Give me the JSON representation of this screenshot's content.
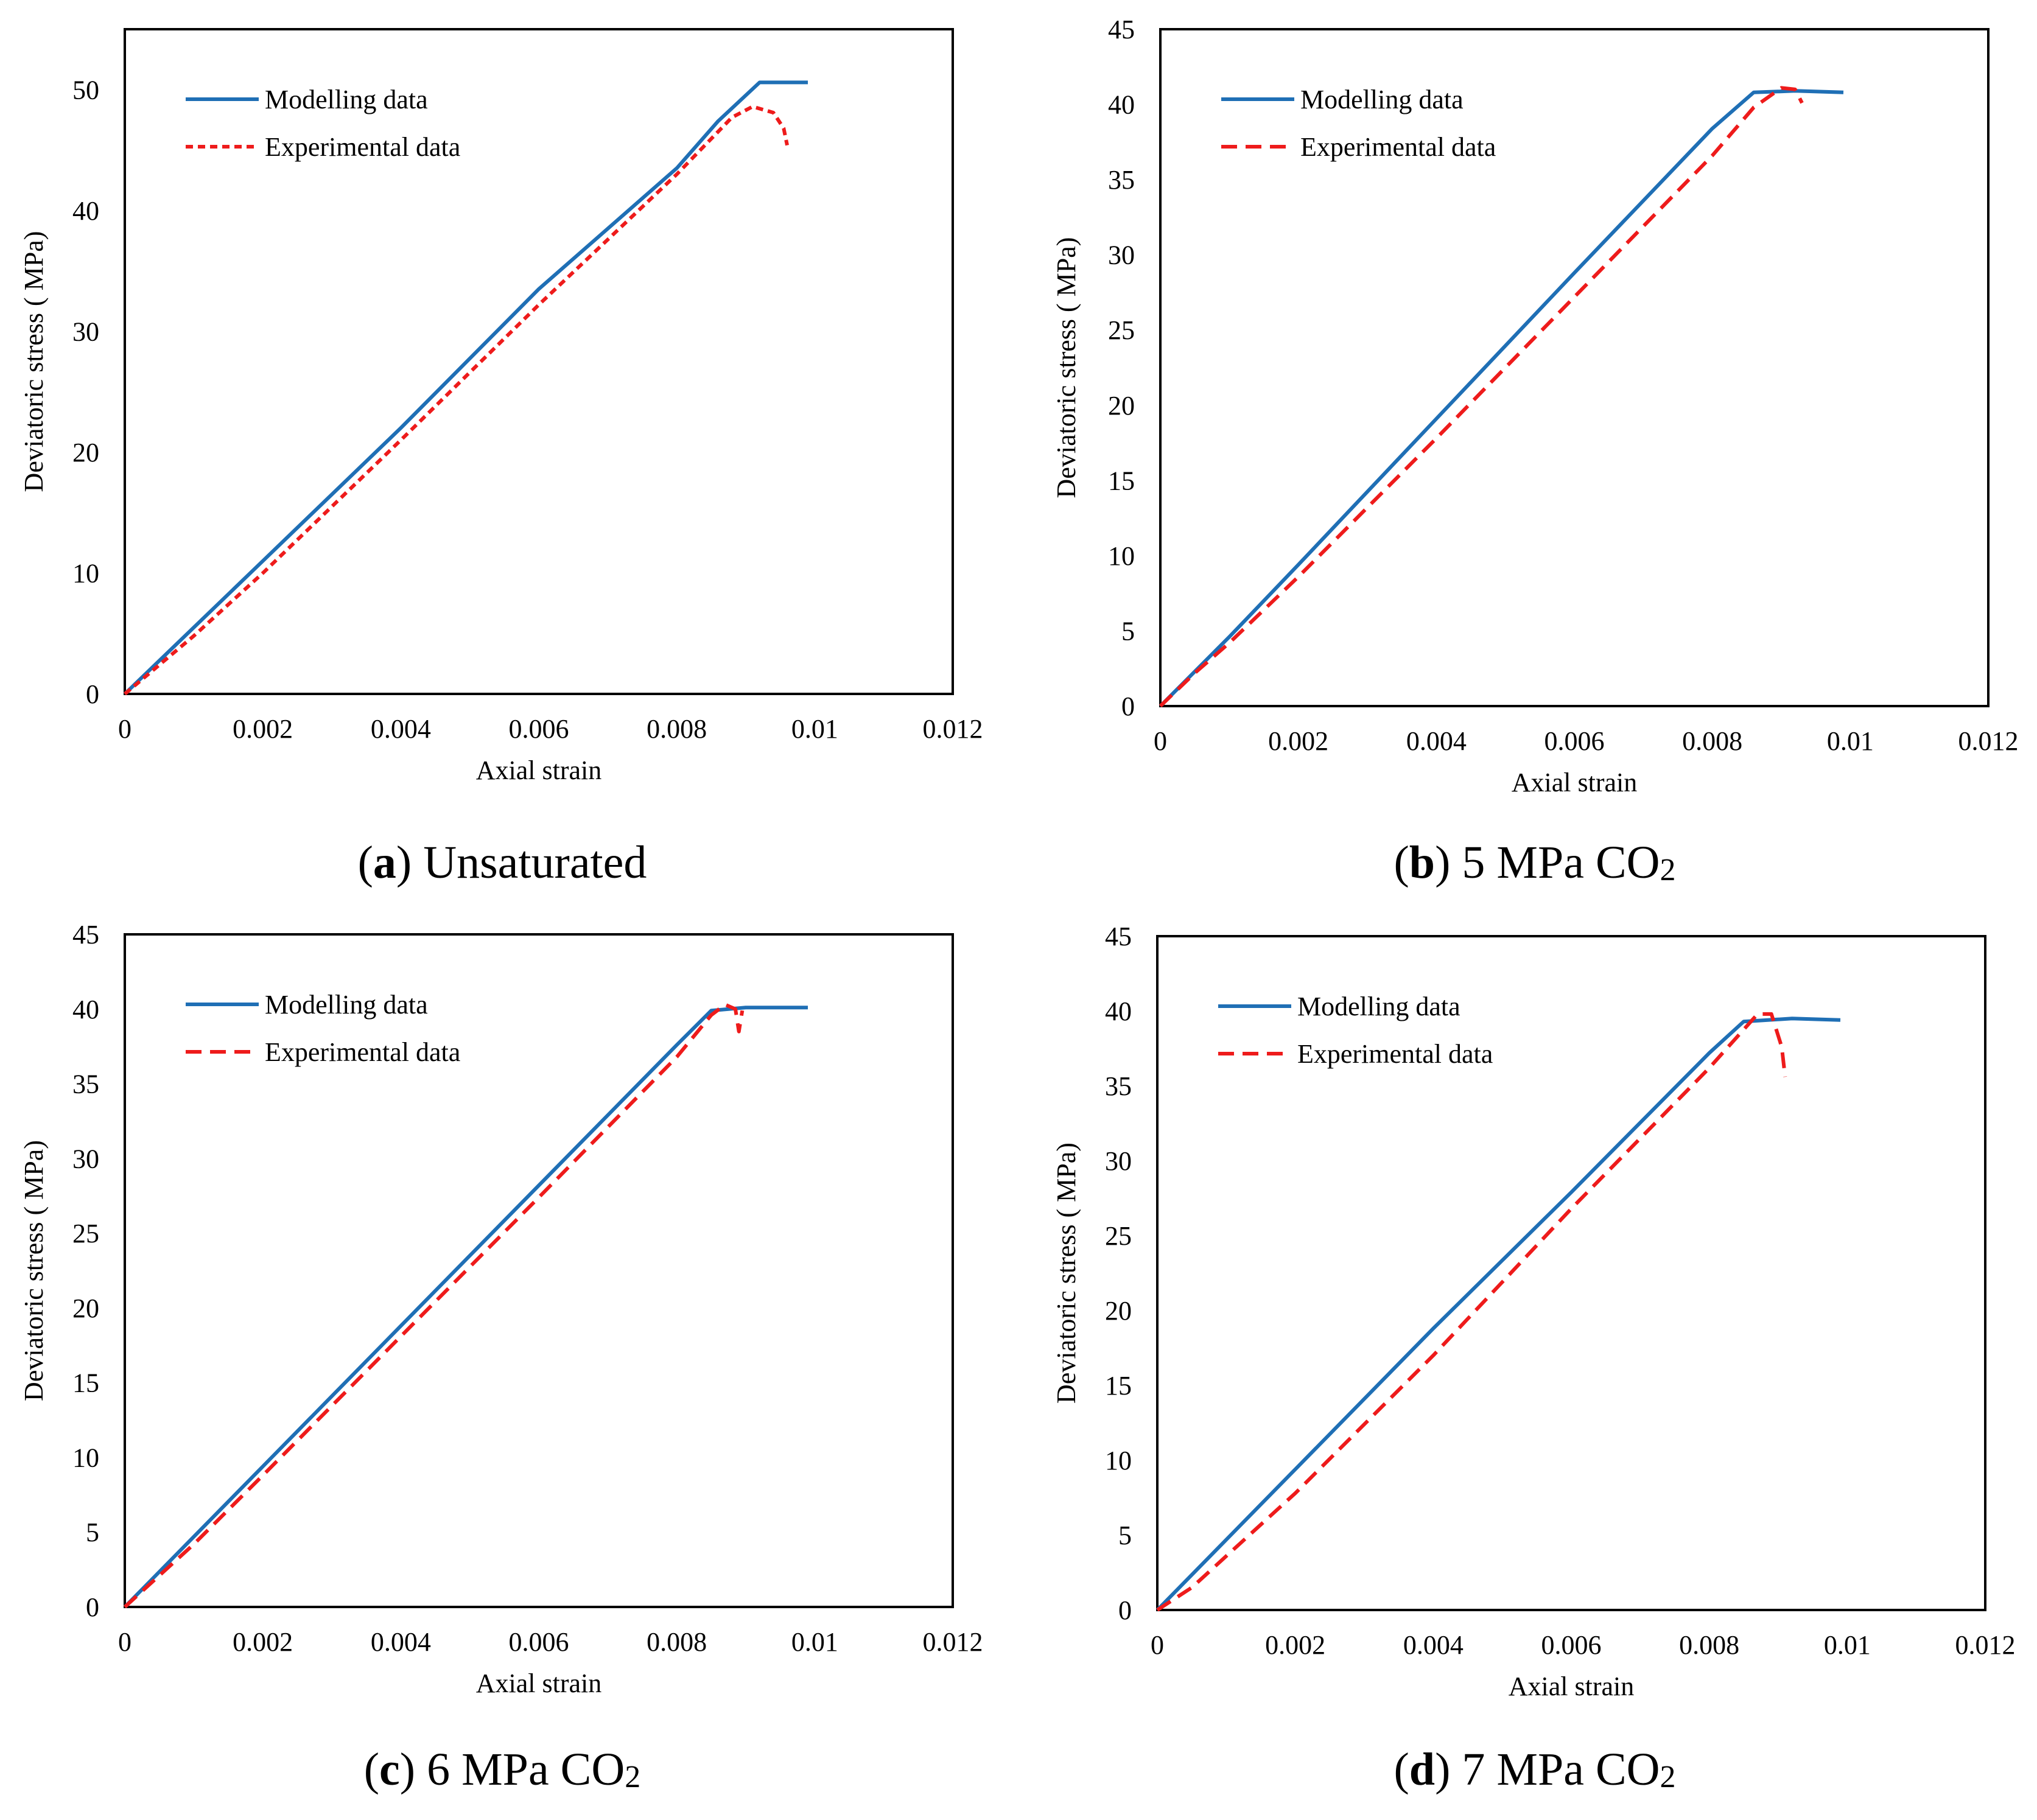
{
  "colors": {
    "modelling": "#1f6fb5",
    "experimental": "#ee1b1b",
    "frame": "#000000"
  },
  "chart_data": [
    {
      "type": "line",
      "id": "a",
      "caption": {
        "letter": "a",
        "text": "Unsaturated",
        "gas": "",
        "sub": ""
      },
      "xlabel": "Axial strain",
      "ylabel": "Deviatoric stress ( MPa)",
      "xlim": [
        0,
        0.012
      ],
      "ylim": [
        0,
        55
      ],
      "xticks": [
        0,
        0.002,
        0.004,
        0.006,
        0.008,
        0.01,
        0.012
      ],
      "xtick_labels": [
        "0",
        "0.002",
        "0.004",
        "0.006",
        "0.008",
        "0.01",
        "0.012"
      ],
      "yticks": [
        0,
        10,
        20,
        30,
        40,
        50
      ],
      "ytick_labels": [
        "0",
        "10",
        "20",
        "30",
        "40",
        "50"
      ],
      "series": [
        {
          "name": "Modelling data",
          "style": "solid",
          "x": [
            0,
            0.002,
            0.004,
            0.006,
            0.008,
            0.0086,
            0.0092,
            0.0099
          ],
          "y": [
            0,
            11,
            22,
            33.5,
            43.5,
            47.4,
            50.6,
            50.6
          ]
        },
        {
          "name": "Experimental data",
          "style": "dense-dash",
          "x": [
            0,
            0.001,
            0.002,
            0.004,
            0.006,
            0.008,
            0.0088,
            0.0091,
            0.0094,
            0.00955,
            0.0096
          ],
          "y": [
            0,
            4.8,
            10,
            21,
            32.2,
            43,
            47.7,
            48.6,
            48.1,
            46.8,
            45.4
          ]
        }
      ]
    },
    {
      "type": "line",
      "id": "b",
      "caption": {
        "letter": "b",
        "text": "5 MPa ",
        "gas": "CO",
        "sub": "2"
      },
      "xlabel": "Axial strain",
      "ylabel": "Deviatoric stress ( MPa)",
      "xlim": [
        0,
        0.012
      ],
      "ylim": [
        0,
        45
      ],
      "xticks": [
        0,
        0.002,
        0.004,
        0.006,
        0.008,
        0.01,
        0.012
      ],
      "xtick_labels": [
        "0",
        "0.002",
        "0.004",
        "0.006",
        "0.008",
        "0.01",
        "0.012"
      ],
      "yticks": [
        0,
        5,
        10,
        15,
        20,
        25,
        30,
        35,
        40,
        45
      ],
      "ytick_labels": [
        "0",
        "5",
        "10",
        "15",
        "20",
        "25",
        "30",
        "35",
        "40",
        "45"
      ],
      "series": [
        {
          "name": "Modelling data",
          "style": "solid",
          "x": [
            0,
            0.001,
            0.002,
            0.004,
            0.006,
            0.008,
            0.0086,
            0.0092,
            0.0099
          ],
          "y": [
            0,
            4.6,
            9.4,
            19.1,
            28.8,
            38.4,
            40.8,
            40.9,
            40.8
          ]
        },
        {
          "name": "Experimental data",
          "style": "dash",
          "x": [
            0,
            0.0005,
            0.001,
            0.002,
            0.004,
            0.006,
            0.008,
            0.0086,
            0.009,
            0.0092,
            0.0093
          ],
          "y": [
            0,
            2.2,
            4.2,
            8.6,
            17.8,
            27.2,
            36.6,
            39.8,
            41.1,
            41.0,
            40.1
          ]
        }
      ]
    },
    {
      "type": "line",
      "id": "c",
      "caption": {
        "letter": "c",
        "text": "6 MPa ",
        "gas": "CO",
        "sub": "2"
      },
      "xlabel": "Axial strain",
      "ylabel": "Deviatoric stress ( MPa)",
      "xlim": [
        0,
        0.012
      ],
      "ylim": [
        0,
        45
      ],
      "xticks": [
        0,
        0.002,
        0.004,
        0.006,
        0.008,
        0.01,
        0.012
      ],
      "xtick_labels": [
        "0",
        "0.002",
        "0.004",
        "0.006",
        "0.008",
        "0.01",
        "0.012"
      ],
      "yticks": [
        0,
        5,
        10,
        15,
        20,
        25,
        30,
        35,
        40,
        45
      ],
      "ytick_labels": [
        "0",
        "5",
        "10",
        "15",
        "20",
        "25",
        "30",
        "35",
        "40",
        "45"
      ],
      "series": [
        {
          "name": "Modelling data",
          "style": "solid",
          "x": [
            0,
            0.002,
            0.004,
            0.006,
            0.008,
            0.0085,
            0.009,
            0.0099
          ],
          "y": [
            0,
            9.4,
            18.8,
            28.2,
            37.6,
            39.9,
            40.1,
            40.1
          ]
        },
        {
          "name": "Experimental data",
          "style": "dash",
          "x": [
            0,
            0.001,
            0.002,
            0.004,
            0.006,
            0.008,
            0.0085,
            0.0087,
            0.00885,
            0.0089,
            0.00895
          ],
          "y": [
            0,
            4.2,
            8.8,
            18.1,
            27.4,
            36.8,
            39.6,
            40.3,
            40.0,
            38.5,
            39.9
          ]
        }
      ]
    },
    {
      "type": "line",
      "id": "d",
      "caption": {
        "letter": "d",
        "text": "7 MPa ",
        "gas": "CO",
        "sub": "2"
      },
      "xlabel": "Axial strain",
      "ylabel": "Deviatoric stress ( MPa)",
      "xlim": [
        0,
        0.012
      ],
      "ylim": [
        0,
        45
      ],
      "xticks": [
        0,
        0.002,
        0.004,
        0.006,
        0.008,
        0.01,
        0.012
      ],
      "xtick_labels": [
        "0",
        "0.002",
        "0.004",
        "0.006",
        "0.008",
        "0.01",
        "0.012"
      ],
      "yticks": [
        0,
        5,
        10,
        15,
        20,
        25,
        30,
        35,
        40,
        45
      ],
      "ytick_labels": [
        "0",
        "5",
        "10",
        "15",
        "20",
        "25",
        "30",
        "35",
        "40",
        "45"
      ],
      "series": [
        {
          "name": "Modelling data",
          "style": "solid",
          "x": [
            0,
            0.002,
            0.004,
            0.006,
            0.008,
            0.0085,
            0.0092,
            0.0099
          ],
          "y": [
            0,
            9.4,
            18.8,
            27.9,
            37.2,
            39.3,
            39.5,
            39.4
          ]
        },
        {
          "name": "Experimental data",
          "style": "dash",
          "x": [
            0,
            0.0005,
            0.001,
            0.002,
            0.004,
            0.006,
            0.008,
            0.0087,
            0.0089,
            0.00905,
            0.0091
          ],
          "y": [
            0,
            1.5,
            3.6,
            7.8,
            17,
            26.8,
            36.2,
            39.8,
            39.8,
            37.6,
            35.6
          ]
        }
      ]
    }
  ]
}
